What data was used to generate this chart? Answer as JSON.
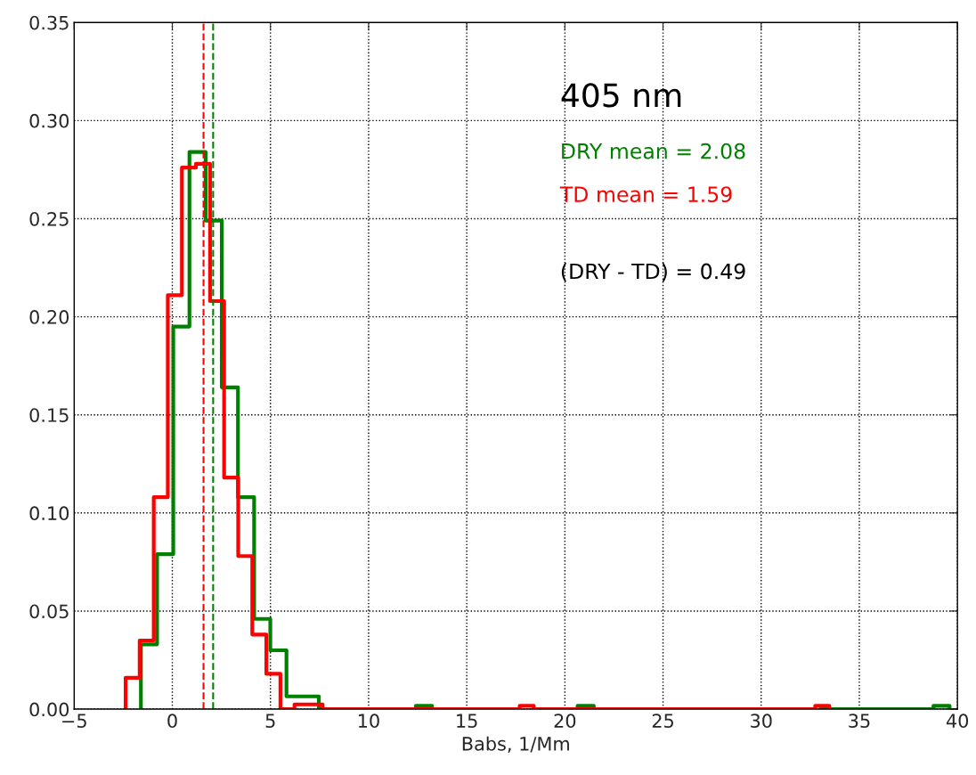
{
  "chart_data": {
    "type": "step",
    "xlabel": "Babs, 1/Mm",
    "xlim": [
      -5,
      40
    ],
    "xticks": [
      {
        "value": -5,
        "label": "−5"
      },
      0,
      5,
      10,
      15,
      20,
      25,
      30,
      35,
      40
    ],
    "ylim": [
      0,
      0.35
    ],
    "yticks": [
      {
        "value": 0,
        "label": "0.00"
      },
      0.05,
      {
        "value": 0.1,
        "label": "0.10"
      },
      0.15,
      {
        "value": 0.2,
        "label": "0.20"
      },
      0.25,
      {
        "value": 0.3,
        "label": "0.30"
      },
      0.35
    ],
    "grid": true,
    "legend": false,
    "series": [
      {
        "color": "#008000",
        "x": [
          -1.6,
          -1.6,
          -0.776,
          0.048,
          0.872,
          1.696,
          2.52,
          3.344,
          4.168,
          4.992,
          5.816,
          6.64,
          7.464,
          8.288,
          9.112,
          9.936,
          10.76,
          11.584,
          12.408,
          13.232,
          14.056,
          14.88,
          15.704,
          16.528,
          17.352,
          18.176,
          19.0,
          19.824,
          20.648,
          21.472,
          22.296,
          23.12,
          23.944,
          24.768,
          25.592,
          26.416,
          27.24,
          28.064,
          28.888,
          29.712,
          30.536,
          31.36,
          32.184,
          33.008,
          33.832,
          34.656,
          35.48,
          36.304,
          37.128,
          37.952,
          38.776,
          39.6
        ],
        "values": [
          0,
          0.033,
          0.079,
          0.195,
          0.284,
          0.249,
          0.164,
          0.108,
          0.046,
          0.03,
          0.0065,
          0.0065,
          0,
          null,
          null,
          null,
          null,
          0,
          0.0017,
          0,
          null,
          null,
          null,
          null,
          null,
          null,
          null,
          0,
          0.0017,
          0,
          null,
          null,
          null,
          null,
          null,
          null,
          null,
          null,
          null,
          null,
          null,
          null,
          null,
          0,
          0,
          0,
          0,
          0,
          0,
          0,
          0.0017,
          0
        ]
      },
      {
        "color": "#ff0000",
        "x": [
          -2.38,
          -2.38,
          -1.663,
          -0.946,
          -0.229,
          0.488,
          1.205,
          1.922,
          2.639,
          3.356,
          4.073,
          4.79,
          5.507,
          6.224,
          6.941,
          7.658,
          8.375,
          9.092,
          9.809,
          10.526,
          11.243,
          11.96,
          12.677,
          13.394,
          14.111,
          14.828,
          15.545,
          16.262,
          16.979,
          17.696,
          18.413,
          19.13,
          19.847,
          20.564,
          21.281,
          21.998,
          22.715,
          23.432,
          24.149,
          24.866,
          25.583,
          26.3,
          27.017,
          27.734,
          28.451,
          29.168,
          29.885,
          30.602,
          31.319,
          32.036,
          32.753,
          33.47
        ],
        "values": [
          0,
          0.016,
          0.035,
          0.108,
          0.211,
          0.276,
          0.278,
          0.208,
          0.118,
          0.078,
          0.038,
          0.018,
          0,
          0.0024,
          0.0024,
          0,
          0,
          0,
          0,
          0,
          0,
          0,
          0,
          0,
          0,
          0,
          0,
          0,
          0,
          0.0017,
          0,
          0,
          0,
          0,
          0,
          0,
          0,
          0,
          0,
          0,
          0,
          0,
          0,
          0,
          0,
          0,
          0,
          0,
          0,
          0,
          0.0017,
          0
        ]
      }
    ],
    "ref_lines": [
      {
        "axis": "x",
        "value": 2.08,
        "label": "DRY mean = 2.08",
        "color": "#008000",
        "line_style": "dashed"
      },
      {
        "axis": "x",
        "value": 1.59,
        "label": "TD mean = 1.59",
        "color": "#ff0000",
        "line_style": "dashed"
      }
    ],
    "annotations": [
      "405 nm",
      "(DRY - TD) = 0.49"
    ]
  }
}
